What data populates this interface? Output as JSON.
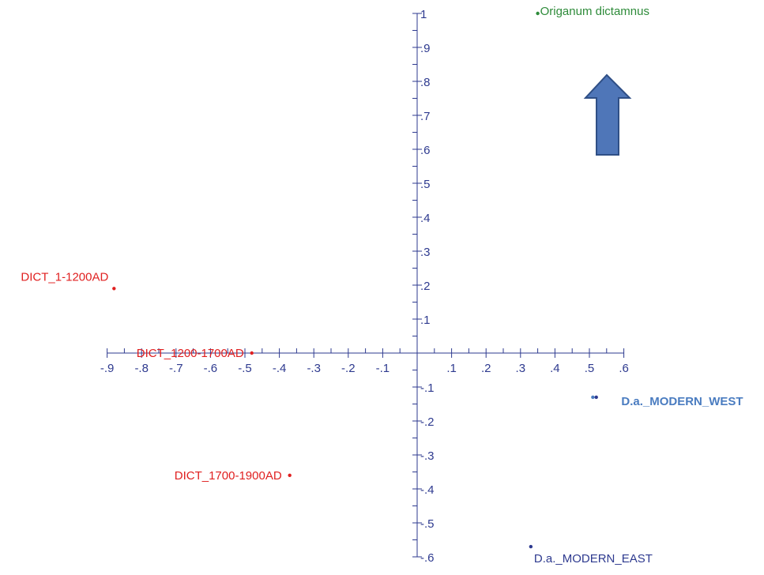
{
  "chart_data": {
    "type": "scatter",
    "title": "",
    "xlabel": "",
    "ylabel": "",
    "xlim": [
      -0.9,
      0.6
    ],
    "ylim": [
      -0.6,
      1.0
    ],
    "grid": false,
    "axis_color": "#2e3a8f",
    "x_ticks": [
      {
        "value": -0.9,
        "label": "-.9"
      },
      {
        "value": -0.8,
        "label": "-.8"
      },
      {
        "value": -0.7,
        "label": "-.7"
      },
      {
        "value": -0.6,
        "label": "-.6"
      },
      {
        "value": -0.5,
        "label": "-.5"
      },
      {
        "value": -0.4,
        "label": "-.4"
      },
      {
        "value": -0.3,
        "label": "-.3"
      },
      {
        "value": -0.2,
        "label": "-.2"
      },
      {
        "value": -0.1,
        "label": "-.1"
      },
      {
        "value": 0.1,
        "label": ".1"
      },
      {
        "value": 0.2,
        "label": ".2"
      },
      {
        "value": 0.3,
        "label": ".3"
      },
      {
        "value": 0.4,
        "label": ".4"
      },
      {
        "value": 0.5,
        "label": ".5"
      },
      {
        "value": 0.6,
        "label": ".6"
      }
    ],
    "y_ticks": [
      {
        "value": 1.0,
        "label": "1"
      },
      {
        "value": 0.9,
        "label": ".9"
      },
      {
        "value": 0.8,
        "label": ".8"
      },
      {
        "value": 0.7,
        "label": ".7"
      },
      {
        "value": 0.6,
        "label": ".6"
      },
      {
        "value": 0.5,
        "label": ".5"
      },
      {
        "value": 0.4,
        "label": ".4"
      },
      {
        "value": 0.3,
        "label": ".3"
      },
      {
        "value": 0.2,
        "label": ".2"
      },
      {
        "value": 0.1,
        "label": ".1"
      },
      {
        "value": -0.1,
        "label": "-.1"
      },
      {
        "value": -0.2,
        "label": "-.2"
      },
      {
        "value": -0.3,
        "label": "-.3"
      },
      {
        "value": -0.4,
        "label": "-.4"
      },
      {
        "value": -0.5,
        "label": "-.5"
      },
      {
        "value": -0.6,
        "label": "-.6"
      }
    ],
    "points": [
      {
        "x": 0.35,
        "y": 1.0,
        "label": "Origanum dictamnus",
        "color": "#2e8b3a",
        "label_pos": "right",
        "bold": false
      },
      {
        "x": -0.88,
        "y": 0.19,
        "label": "DICT_1-1200AD",
        "color": "#e02020",
        "label_pos": "above-left",
        "bold": false
      },
      {
        "x": -0.48,
        "y": 0.0,
        "label": "DICT_1200-1700AD",
        "color": "#e02020",
        "label_pos": "left",
        "bold": false
      },
      {
        "x": -0.37,
        "y": -0.36,
        "label": "DICT_1700-1900AD",
        "color": "#e02020",
        "label_pos": "left",
        "bold": false
      },
      {
        "x": 0.51,
        "y": -0.13,
        "label": "D.a._MODERN_WEST",
        "color": "#4a7cc0",
        "label_pos": "right",
        "bold": true
      },
      {
        "x": 0.52,
        "y": -0.13,
        "label": "",
        "color": "#2e3a8f",
        "label_pos": "none",
        "bold": false
      },
      {
        "x": 0.33,
        "y": -0.57,
        "label": "D.a._MODERN_EAST",
        "color": "#2e3a8f",
        "label_pos": "below-right",
        "bold": false
      }
    ],
    "annotations": [
      {
        "type": "arrow",
        "direction": "up",
        "color": "#4f76b8",
        "edge_color": "#2f4f86"
      }
    ]
  }
}
